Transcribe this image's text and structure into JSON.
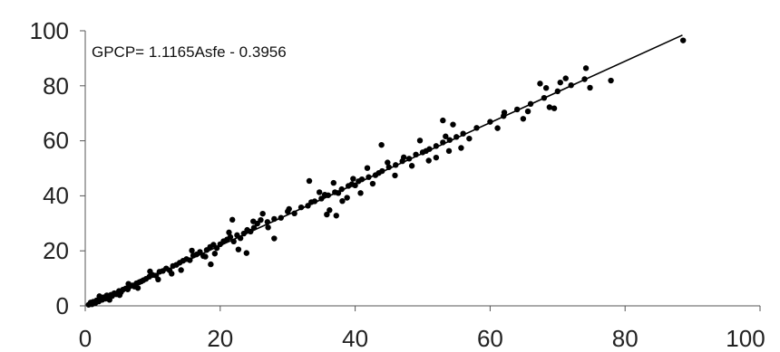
{
  "chart_data": {
    "type": "scatter",
    "title": "",
    "xlabel": "",
    "ylabel": "",
    "xlim": [
      0,
      100
    ],
    "ylim": [
      0,
      100
    ],
    "x_ticks": [
      "0",
      "20",
      "40",
      "60",
      "80",
      "100"
    ],
    "y_ticks": [
      "0",
      "20",
      "40",
      "60",
      "80",
      "100"
    ],
    "grid": false,
    "legend": "none",
    "annotation": "GPCP= 1.1165Asfe - 0.3956",
    "trendline": {
      "slope": 1.1165,
      "intercept": -0.3956,
      "x_range": [
        0.4,
        88.5
      ]
    },
    "marker_color": "#000000",
    "series": [
      {
        "points": [
          [
            0.5,
            0.4
          ],
          [
            0.8,
            1.2
          ],
          [
            1.0,
            0.6
          ],
          [
            1.2,
            1.5
          ],
          [
            1.5,
            1.0
          ],
          [
            1.7,
            2.0
          ],
          [
            2.0,
            1.6
          ],
          [
            2.2,
            2.4
          ],
          [
            2.5,
            2.2
          ],
          [
            2.7,
            3.1
          ],
          [
            3.0,
            2.6
          ],
          [
            3.2,
            3.8
          ],
          [
            3.5,
            3.3
          ],
          [
            3.8,
            4.0
          ],
          [
            4.0,
            3.6
          ],
          [
            4.3,
            4.6
          ],
          [
            4.6,
            4.2
          ],
          [
            5.0,
            5.4
          ],
          [
            5.3,
            5.0
          ],
          [
            5.6,
            5.9
          ],
          [
            6.0,
            6.3
          ],
          [
            6.3,
            6.0
          ],
          [
            6.6,
            7.1
          ],
          [
            7.0,
            7.4
          ],
          [
            7.3,
            7.0
          ],
          [
            7.6,
            8.2
          ],
          [
            8.0,
            8.6
          ],
          [
            8.3,
            8.9
          ],
          [
            8.6,
            9.3
          ],
          [
            9.0,
            9.8
          ],
          [
            9.5,
            10.6
          ],
          [
            10.0,
            11.2
          ],
          [
            10.5,
            11.0
          ],
          [
            11.0,
            12.4
          ],
          [
            11.5,
            12.7
          ],
          [
            12.0,
            13.6
          ],
          [
            12.5,
            12.9
          ],
          [
            13.0,
            14.5
          ],
          [
            13.5,
            14.9
          ],
          [
            14.0,
            15.7
          ],
          [
            14.5,
            16.4
          ],
          [
            15.0,
            17.0
          ],
          [
            15.5,
            16.6
          ],
          [
            16.0,
            18.3
          ],
          [
            16.5,
            18.7
          ],
          [
            17.0,
            19.6
          ],
          [
            17.5,
            18.1
          ],
          [
            18.0,
            20.3
          ],
          [
            18.5,
            21.4
          ],
          [
            19.0,
            22.2
          ],
          [
            19.5,
            21.0
          ],
          [
            20.0,
            22.4
          ],
          [
            20.5,
            23.5
          ],
          [
            21.0,
            24.1
          ],
          [
            21.5,
            25.0
          ],
          [
            22.0,
            23.4
          ],
          [
            22.5,
            25.7
          ],
          [
            23.0,
            24.6
          ],
          [
            23.5,
            26.3
          ],
          [
            24.0,
            27.6
          ],
          [
            24.5,
            27.0
          ],
          [
            25.0,
            28.4
          ],
          [
            25.5,
            29.9
          ],
          [
            26.0,
            31.2
          ],
          [
            27.0,
            30.5
          ],
          [
            28.0,
            31.6
          ],
          [
            29.0,
            32.0
          ],
          [
            30.0,
            34.3
          ],
          [
            31.0,
            33.6
          ],
          [
            32.0,
            35.8
          ],
          [
            33.0,
            36.4
          ],
          [
            33.5,
            37.7
          ],
          [
            34.0,
            38.0
          ],
          [
            35.0,
            39.0
          ],
          [
            35.5,
            40.4
          ],
          [
            36.0,
            40.2
          ],
          [
            37.0,
            41.3
          ],
          [
            37.5,
            41.0
          ],
          [
            38.0,
            42.4
          ],
          [
            39.0,
            43.6
          ],
          [
            39.5,
            44.2
          ],
          [
            40.0,
            43.8
          ],
          [
            40.5,
            45.3
          ],
          [
            41.0,
            46.0
          ],
          [
            42.0,
            46.8
          ],
          [
            43.0,
            47.5
          ],
          [
            43.5,
            48.3
          ],
          [
            44.0,
            49.0
          ],
          [
            45.0,
            50.4
          ],
          [
            46.0,
            51.2
          ],
          [
            47.0,
            52.6
          ],
          [
            48.0,
            53.5
          ],
          [
            49.0,
            55.0
          ],
          [
            50.0,
            55.8
          ],
          [
            50.5,
            56.3
          ],
          [
            51.0,
            57.0
          ],
          [
            52.0,
            58.1
          ],
          [
            53.0,
            59.4
          ],
          [
            54.0,
            60.3
          ],
          [
            55.0,
            61.4
          ],
          [
            56.0,
            62.6
          ],
          [
            58.0,
            64.7
          ],
          [
            60.0,
            66.9
          ],
          [
            62.0,
            69.0
          ],
          [
            64.0,
            71.4
          ],
          [
            66.0,
            73.4
          ],
          [
            68.0,
            75.6
          ],
          [
            70.0,
            78.0
          ],
          [
            72.0,
            80.2
          ],
          [
            74.0,
            82.4
          ],
          [
            2.1,
            3.5
          ],
          [
            3.6,
            2.2
          ],
          [
            5.1,
            3.9
          ],
          [
            6.4,
            8.0
          ],
          [
            7.8,
            6.5
          ],
          [
            9.6,
            12.5
          ],
          [
            10.8,
            9.6
          ],
          [
            12.8,
            11.7
          ],
          [
            14.2,
            13.0
          ],
          [
            15.8,
            20.1
          ],
          [
            17.8,
            17.9
          ],
          [
            18.6,
            15.1
          ],
          [
            19.2,
            19.0
          ],
          [
            21.3,
            26.7
          ],
          [
            21.8,
            31.3
          ],
          [
            22.7,
            20.5
          ],
          [
            23.9,
            19.2
          ],
          [
            24.9,
            30.7
          ],
          [
            26.3,
            33.5
          ],
          [
            27.1,
            28.5
          ],
          [
            28.0,
            24.5
          ],
          [
            30.2,
            35.2
          ],
          [
            33.2,
            45.4
          ],
          [
            34.7,
            41.3
          ],
          [
            35.8,
            33.2
          ],
          [
            36.2,
            34.8
          ],
          [
            36.8,
            44.7
          ],
          [
            37.2,
            32.8
          ],
          [
            38.1,
            38.1
          ],
          [
            38.8,
            39.3
          ],
          [
            39.7,
            46.2
          ],
          [
            40.8,
            41.0
          ],
          [
            41.8,
            50.1
          ],
          [
            42.6,
            44.4
          ],
          [
            43.9,
            58.5
          ],
          [
            44.8,
            52.1
          ],
          [
            45.9,
            47.4
          ],
          [
            47.2,
            54.0
          ],
          [
            48.4,
            50.9
          ],
          [
            49.6,
            60.1
          ],
          [
            50.9,
            52.8
          ],
          [
            52.0,
            53.9
          ],
          [
            53.0,
            67.4
          ],
          [
            53.4,
            61.6
          ],
          [
            53.9,
            56.3
          ],
          [
            54.5,
            65.9
          ],
          [
            55.7,
            57.4
          ],
          [
            56.9,
            60.8
          ],
          [
            61.1,
            64.6
          ],
          [
            62.1,
            70.3
          ],
          [
            64.9,
            68.0
          ],
          [
            65.6,
            70.7
          ],
          [
            67.4,
            80.8
          ],
          [
            68.3,
            79.2
          ],
          [
            68.8,
            72.2
          ],
          [
            69.5,
            71.8
          ],
          [
            70.4,
            81.2
          ],
          [
            71.2,
            82.7
          ],
          [
            74.2,
            86.4
          ],
          [
            74.8,
            79.3
          ],
          [
            77.9,
            81.9
          ],
          [
            88.6,
            96.5
          ]
        ]
      }
    ]
  }
}
